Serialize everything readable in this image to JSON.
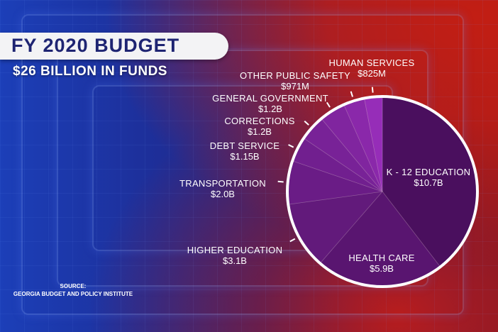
{
  "title": "FY 2020 BUDGET",
  "subtitle": "$26 BILLION IN FUNDS",
  "source": {
    "label": "SOURCE:",
    "text": "GEORGIA BUDGET AND POLICY INSTITUTE"
  },
  "colors": {
    "title_bg": "#f3f3f5",
    "title_text": "#1e2472",
    "pie_outline": "#ffffff"
  },
  "chart_data": {
    "type": "pie",
    "title": "FY 2020 BUDGET",
    "subtitle": "$26 BILLION IN FUNDS",
    "unit": "billion USD",
    "slices": [
      {
        "name": "K - 12 EDUCATION",
        "label": "$10.7B",
        "value": 10.7,
        "color": "#4a0f5e"
      },
      {
        "name": "HEALTH CARE",
        "label": "$5.9B",
        "value": 5.9,
        "color": "#591570"
      },
      {
        "name": "HIGHER EDUCATION",
        "label": "$3.1B",
        "value": 3.1,
        "color": "#621a7b"
      },
      {
        "name": "TRANSPORTATION",
        "label": "$2.0B",
        "value": 2.0,
        "color": "#6a1c86"
      },
      {
        "name": "DEBT SERVICE",
        "label": "$1.15B",
        "value": 1.15,
        "color": "#711f8f"
      },
      {
        "name": "CORRECTIONS",
        "label": "$1.2B",
        "value": 1.2,
        "color": "#782297"
      },
      {
        "name": "GENERAL GOVERNMENT",
        "label": "$1.2B",
        "value": 1.2,
        "color": "#80259f"
      },
      {
        "name": "OTHER PUBLIC SAFETY",
        "label": "$971M",
        "value": 0.971,
        "color": "#8a28aa"
      },
      {
        "name": "HUMAN SERVICES",
        "label": "$825M",
        "value": 0.825,
        "color": "#962db8"
      }
    ]
  }
}
